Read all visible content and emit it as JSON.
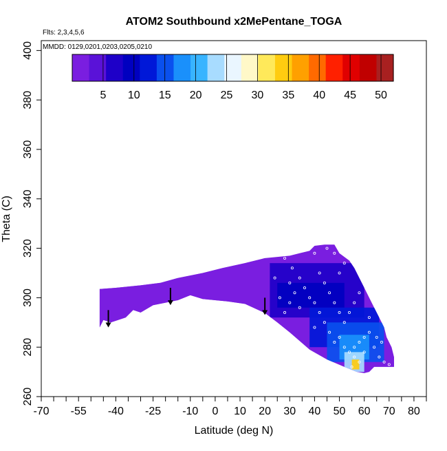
{
  "chart_data": {
    "type": "heatmap",
    "title": "ATOM2 Southbound x2MePentane_TOGA",
    "subtitle_flights": "Flts: 2,3,4,5,6",
    "subtitle_dates": "MMDD: 0129,0201,0203,0205,0210",
    "xlabel": "Latitude (deg N)",
    "ylabel": "Theta (C)",
    "xlim": [
      -70,
      85
    ],
    "ylim": [
      260,
      404
    ],
    "x_tick_labels": [
      "-70",
      "-55",
      "-40",
      "-25",
      "-10",
      "0",
      "10",
      "20",
      "30",
      "40",
      "50",
      "60",
      "70",
      "80"
    ],
    "x_ticks": [
      -70,
      -55,
      -40,
      -25,
      -10,
      0,
      10,
      20,
      30,
      40,
      50,
      60,
      70,
      80
    ],
    "x_minor_ticks": [
      -65,
      -60,
      -50,
      -45,
      -35,
      -30,
      -20,
      -15,
      -5,
      5,
      15,
      25,
      35,
      45,
      55,
      65,
      75,
      85
    ],
    "y_ticks": [
      260,
      280,
      300,
      320,
      340,
      360,
      380,
      400
    ],
    "colorbar": {
      "min": 0,
      "max": 52,
      "ticks": [
        5,
        10,
        15,
        20,
        25,
        30,
        35,
        40,
        45,
        50
      ],
      "colors": [
        "#7a1ee0",
        "#5a12d8",
        "#1e00c8",
        "#0000c0",
        "#0018d8",
        "#0a50ee",
        "#1a90fb",
        "#38b4ff",
        "#a8dcff",
        "#eaf6ff",
        "#fff8c8",
        "#ffe95a",
        "#ffcc10",
        "#ffa000",
        "#ff6a00",
        "#ff2000",
        "#e00000",
        "#c00000",
        "#a82020"
      ]
    },
    "field_outline": [
      [
        -46.5,
        288
      ],
      [
        -45,
        291
      ],
      [
        -42,
        290
      ],
      [
        -36,
        292
      ],
      [
        -33,
        295
      ],
      [
        -30,
        294
      ],
      [
        -25,
        297
      ],
      [
        -15,
        299
      ],
      [
        -10,
        301
      ],
      [
        -5,
        299.5
      ],
      [
        5,
        298.5
      ],
      [
        12,
        297.5
      ],
      [
        20,
        293.8
      ],
      [
        25,
        290
      ],
      [
        30,
        286
      ],
      [
        38,
        279
      ],
      [
        45,
        275
      ],
      [
        52,
        272
      ],
      [
        57,
        270
      ],
      [
        60,
        269.5
      ],
      [
        62,
        270
      ],
      [
        64,
        272
      ],
      [
        72,
        272
      ],
      [
        72,
        276
      ],
      [
        71,
        280
      ],
      [
        69,
        284
      ],
      [
        68,
        288
      ],
      [
        66,
        292
      ],
      [
        64,
        296
      ],
      [
        62,
        300
      ],
      [
        60,
        304
      ],
      [
        58,
        308
      ],
      [
        56,
        312
      ],
      [
        54,
        315
      ],
      [
        50,
        318
      ],
      [
        48,
        321.5
      ],
      [
        44,
        321.5
      ],
      [
        40,
        321
      ],
      [
        38,
        319
      ],
      [
        34,
        318
      ],
      [
        30,
        317
      ],
      [
        20,
        316
      ],
      [
        12,
        314
      ],
      [
        3,
        312
      ],
      [
        -5,
        310
      ],
      [
        -10,
        309
      ],
      [
        -15,
        308
      ],
      [
        -22,
        306
      ],
      [
        -30,
        305
      ],
      [
        -40,
        304
      ],
      [
        -46.5,
        303.5
      ]
    ],
    "patches": [
      {
        "lat_min": -46.5,
        "lat_max": 20,
        "theta_min": 288,
        "theta_max": 316,
        "value": 1.5
      },
      {
        "lat_min": 22,
        "lat_max": 60,
        "theta_min": 292,
        "theta_max": 314,
        "value": 7
      },
      {
        "lat_min": 25,
        "lat_max": 52,
        "theta_min": 296,
        "theta_max": 306,
        "value": 9
      },
      {
        "lat_min": 38,
        "lat_max": 66,
        "theta_min": 280,
        "theta_max": 296,
        "value": 11
      },
      {
        "lat_min": 45,
        "lat_max": 68,
        "theta_min": 274,
        "theta_max": 290,
        "value": 15
      },
      {
        "lat_min": 50,
        "lat_max": 62,
        "theta_min": 275,
        "theta_max": 285,
        "value": 19
      },
      {
        "lat_min": 52,
        "lat_max": 60,
        "theta_min": 270,
        "theta_max": 278,
        "value": 23
      },
      {
        "lat_min": 55,
        "lat_max": 58,
        "theta_min": 271,
        "theta_max": 275,
        "value": 35
      }
    ],
    "sample_points": [
      [
        28,
        316
      ],
      [
        31,
        312
      ],
      [
        34,
        308
      ],
      [
        36,
        304
      ],
      [
        38,
        300
      ],
      [
        30,
        306
      ],
      [
        42,
        310
      ],
      [
        44,
        306
      ],
      [
        46,
        302
      ],
      [
        48,
        298
      ],
      [
        50,
        294
      ],
      [
        52,
        290
      ],
      [
        40,
        298
      ],
      [
        42,
        294
      ],
      [
        44,
        290
      ],
      [
        46,
        286
      ],
      [
        48,
        282
      ],
      [
        50,
        284
      ],
      [
        52,
        280
      ],
      [
        54,
        278
      ],
      [
        56,
        276
      ],
      [
        58,
        274
      ],
      [
        56,
        280
      ],
      [
        58,
        282
      ],
      [
        60,
        284
      ],
      [
        62,
        286
      ],
      [
        64,
        280
      ],
      [
        66,
        276
      ],
      [
        68,
        274
      ],
      [
        70,
        273
      ],
      [
        54,
        294
      ],
      [
        56,
        298
      ],
      [
        58,
        302
      ],
      [
        60,
        306
      ],
      [
        50,
        310
      ],
      [
        52,
        314
      ],
      [
        48,
        318
      ],
      [
        45,
        320
      ],
      [
        40,
        318
      ],
      [
        36,
        320
      ],
      [
        30,
        298
      ],
      [
        26,
        300
      ],
      [
        32,
        302
      ],
      [
        34,
        296
      ],
      [
        40,
        288
      ],
      [
        55,
        272
      ],
      [
        60,
        278
      ],
      [
        62,
        292
      ],
      [
        65,
        284
      ],
      [
        67,
        282
      ],
      [
        24,
        308
      ],
      [
        28,
        294
      ]
    ],
    "arrows": [
      {
        "lat": -43,
        "theta_top": 295,
        "theta_bottom": 288
      },
      {
        "lat": -18,
        "theta_top": 304,
        "theta_bottom": 297
      },
      {
        "lat": 20,
        "theta_top": 300,
        "theta_bottom": 293
      }
    ]
  }
}
